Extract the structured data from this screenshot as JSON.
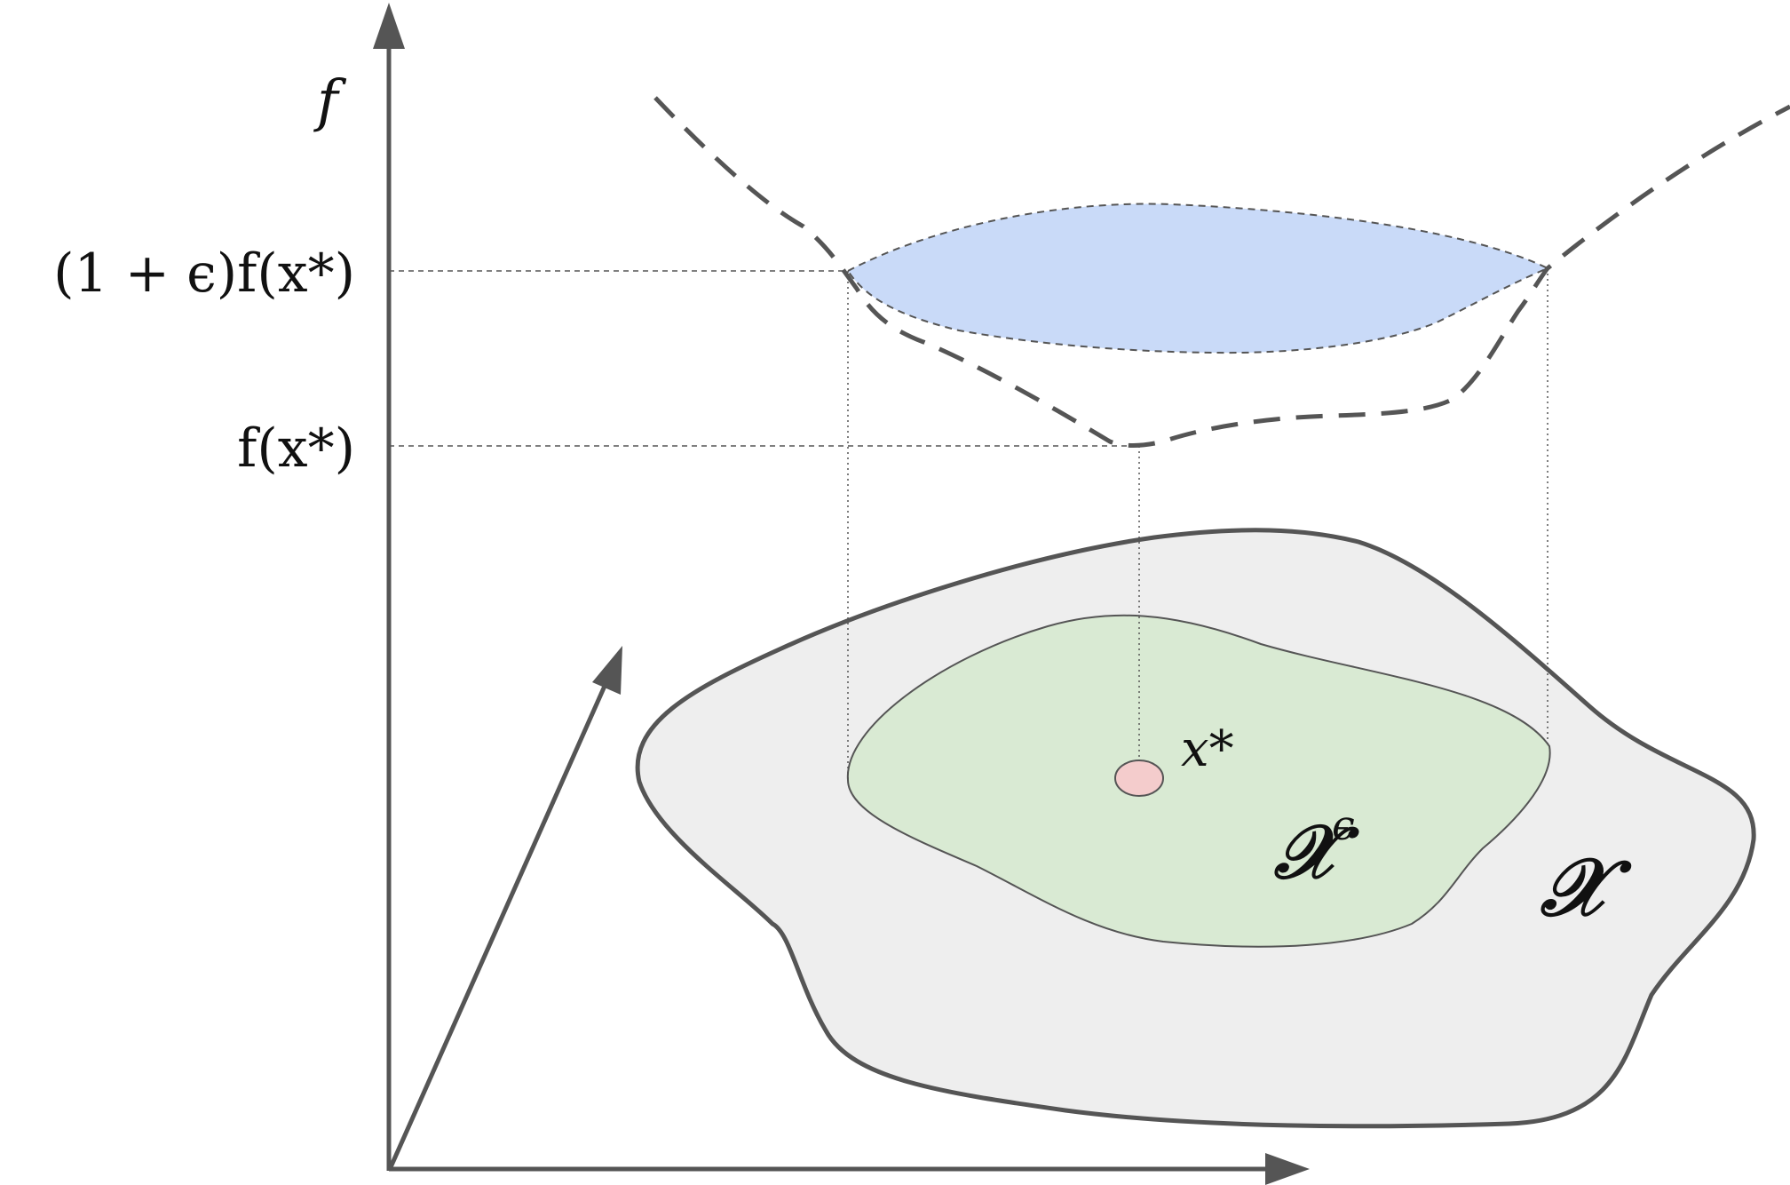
{
  "labels": {
    "f_axis": "f",
    "level_upper": "(1 + ϵ)f(x*)",
    "level_lower": "f(x*)",
    "optimum_point": "x*",
    "sublevel_set": "𝒳",
    "sublevel_set_sup": "ϵ",
    "domain_set": "𝒳"
  },
  "colors": {
    "axes": "#555555",
    "curve": "#555555",
    "guide_lines": "#555555",
    "blue_region": "#c9daf8",
    "green_region": "#d9ead3",
    "gray_region": "#eeeeee",
    "optimum_fill": "#f4cccc"
  }
}
